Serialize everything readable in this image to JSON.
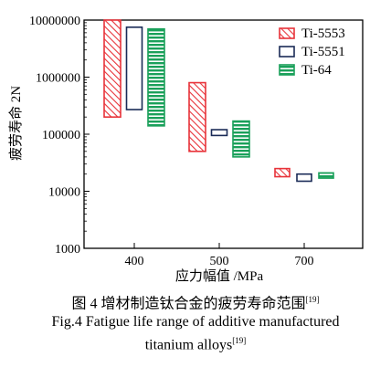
{
  "chart_data": {
    "type": "floating-bar",
    "xlabel": "应力幅值 /MPa",
    "ylabel": "疲劳寿命 2N",
    "yscale": "log",
    "ylim": [
      1000,
      10000000
    ],
    "yticks": [
      "1000",
      "10000",
      "100000",
      "1000000",
      "10000000"
    ],
    "categories": [
      "400",
      "500",
      "700"
    ],
    "legend_position": "top-right",
    "series": [
      {
        "name": "Ti-5553",
        "color": "#e8333a",
        "fill": "hatched",
        "ranges": [
          [
            200000,
            10000000
          ],
          [
            50000,
            800000
          ],
          [
            18000,
            25000
          ]
        ]
      },
      {
        "name": "Ti-5551",
        "color": "#1a2b57",
        "fill": "none",
        "ranges": [
          [
            270000,
            7500000
          ],
          [
            95000,
            120000
          ],
          [
            15000,
            20000
          ]
        ]
      },
      {
        "name": "Ti-64",
        "color": "#1aa05a",
        "fill": "striped",
        "ranges": [
          [
            140000,
            7000000
          ],
          [
            40000,
            170000
          ],
          [
            17000,
            21000
          ]
        ]
      }
    ]
  },
  "caption": {
    "cn": "图 4   增材制造钛合金的疲劳寿命范围",
    "cn_ref": "[19]",
    "en_line1": "Fig.4  Fatigue life range of additive manufactured",
    "en_line2": "titanium alloys",
    "en_ref": "[19]"
  }
}
